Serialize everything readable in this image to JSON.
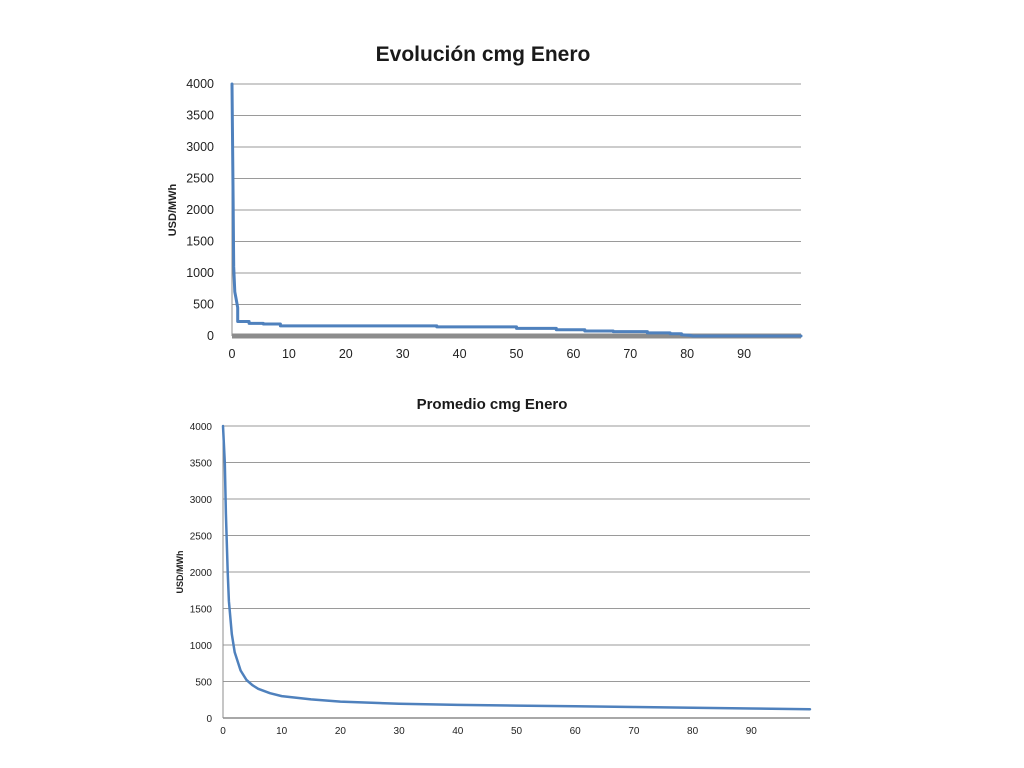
{
  "chart_data": [
    {
      "type": "line",
      "title": "Evolución cmg Enero",
      "xlabel": "",
      "ylabel": "USD/MWh",
      "xlim": [
        0,
        100
      ],
      "ylim": [
        0,
        4000
      ],
      "x_ticks": [
        0,
        10,
        20,
        30,
        40,
        50,
        60,
        70,
        80,
        90
      ],
      "y_ticks": [
        0,
        500,
        1000,
        1500,
        2000,
        2500,
        3000,
        3500,
        4000
      ],
      "grid": "horizontal",
      "legend": "none",
      "series": [
        {
          "color": "#4f81bd",
          "x": [
            0,
            0.2,
            0.3,
            0.5,
            0.7,
            1,
            1,
            3,
            3,
            5.5,
            5.5,
            8.5,
            8.5,
            36,
            36,
            50,
            50,
            57,
            57,
            62,
            62,
            67,
            67,
            73,
            73,
            77,
            77,
            79,
            79,
            80.5,
            81,
            100
          ],
          "y": [
            4000,
            2200,
            1100,
            700,
            600,
            450,
            230,
            230,
            200,
            200,
            190,
            190,
            160,
            160,
            145,
            145,
            120,
            120,
            100,
            100,
            80,
            80,
            70,
            70,
            50,
            50,
            35,
            35,
            20,
            10,
            0,
            0
          ]
        }
      ]
    },
    {
      "type": "line",
      "title": "Promedio cmg Enero",
      "xlabel": "",
      "ylabel": "USD/MWh",
      "xlim": [
        0,
        100
      ],
      "ylim": [
        0,
        4000
      ],
      "x_ticks": [
        0,
        10,
        20,
        30,
        40,
        50,
        60,
        70,
        80,
        90
      ],
      "y_ticks": [
        0,
        500,
        1000,
        1500,
        2000,
        2500,
        3000,
        3500,
        4000
      ],
      "grid": "horizontal",
      "legend": "none",
      "series": [
        {
          "color": "#4f81bd",
          "x": [
            0,
            0.3,
            0.5,
            0.8,
            1,
            1.5,
            2,
            3,
            4,
            5,
            6,
            8,
            10,
            15,
            20,
            30,
            40,
            50,
            60,
            70,
            80,
            90,
            100
          ],
          "y": [
            4000,
            3500,
            2800,
            2000,
            1600,
            1150,
            900,
            650,
            520,
            450,
            400,
            340,
            300,
            255,
            225,
            195,
            180,
            170,
            160,
            150,
            140,
            130,
            120
          ]
        }
      ]
    }
  ]
}
